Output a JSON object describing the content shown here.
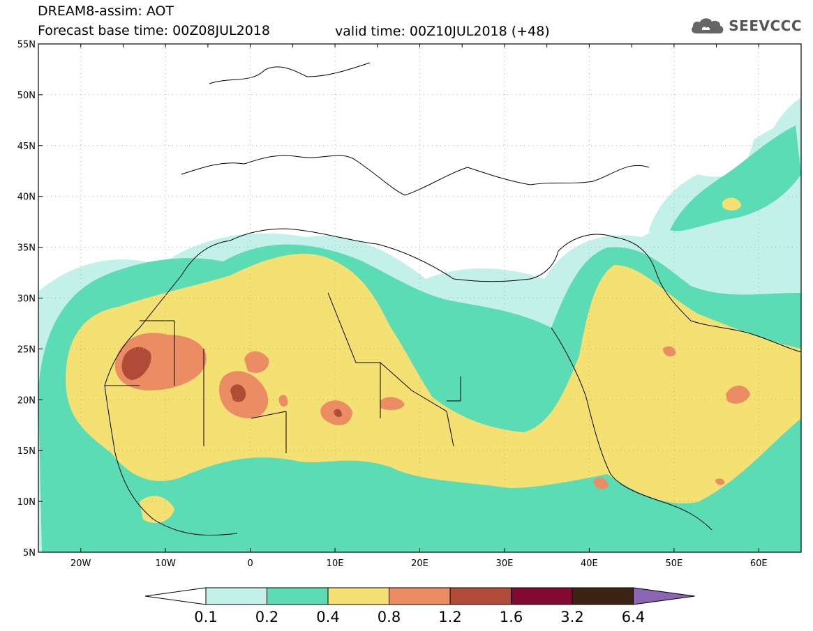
{
  "header": {
    "title_line1": "DREAM8-assim: AOT",
    "title_line2": "Forecast base time: 00Z08JUL2018",
    "valid_time": "valid time: 00Z10JUL2018 (+48)",
    "logo_text": "SEEVCCC",
    "logo_icon": "cloud-icon"
  },
  "map": {
    "lat_range": [
      5,
      55
    ],
    "lon_range": [
      -25,
      65
    ],
    "lat_labels": [
      "55N",
      "50N",
      "45N",
      "40N",
      "35N",
      "30N",
      "25N",
      "20N",
      "15N",
      "10N",
      "5N"
    ],
    "lon_labels": [
      "20W",
      "10W",
      "0",
      "10E",
      "20E",
      "30E",
      "40E",
      "50E",
      "60E"
    ],
    "grid": true
  },
  "colorbar": {
    "levels": [
      "0.1",
      "0.2",
      "0.4",
      "0.8",
      "1.2",
      "1.6",
      "3.2",
      "6.4"
    ],
    "colors": [
      "#c4f0ea",
      "#5cdcb4",
      "#f5e173",
      "#eb8c64",
      "#b04b37",
      "#820a32",
      "#3c2314",
      "#8c64b4"
    ]
  }
}
